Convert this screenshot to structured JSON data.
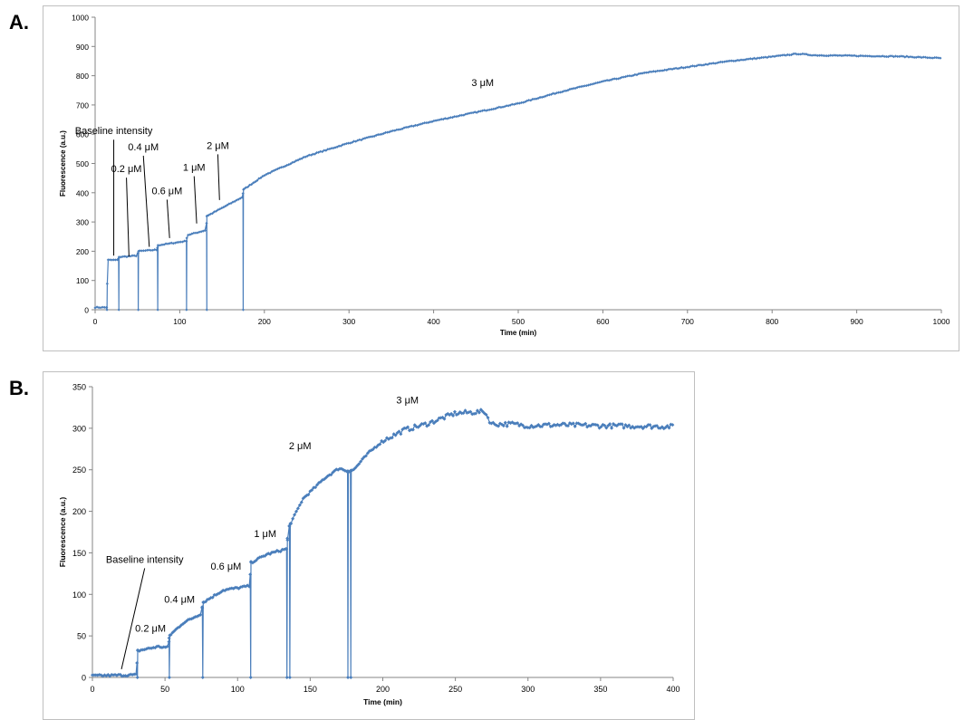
{
  "panels": {
    "a_label": "A.",
    "b_label": "B."
  },
  "colors": {
    "series": "#4a7ebb",
    "axis": "#868686",
    "frame": "#bfbfbf"
  },
  "chart_data": [
    {
      "type": "line",
      "xlabel": "Time (min)",
      "ylabel": "Fluorescence (a.u.)",
      "xlim": [
        0,
        1000
      ],
      "ylim": [
        0,
        1000
      ],
      "xticks": [
        0,
        100,
        200,
        300,
        400,
        500,
        600,
        700,
        800,
        900,
        1000
      ],
      "yticks": [
        0,
        100,
        200,
        300,
        400,
        500,
        600,
        700,
        800,
        900,
        1000
      ],
      "grid": false,
      "series": [
        {
          "x": [
            0,
            14,
            15,
            27,
            28,
            50,
            51,
            73,
            74,
            108,
            109,
            131,
            132,
            174,
            175,
            200,
            250,
            300,
            350,
            400,
            450,
            500,
            550,
            600,
            650,
            700,
            750,
            800,
            830,
            850,
            900,
            950,
            1000
          ],
          "y": [
            8,
            8,
            170,
            170,
            180,
            185,
            200,
            205,
            220,
            235,
            255,
            272,
            320,
            385,
            410,
            460,
            525,
            570,
            610,
            645,
            675,
            705,
            745,
            780,
            810,
            830,
            850,
            865,
            875,
            870,
            868,
            866,
            860
          ],
          "drops": [
            14,
            28,
            51,
            74,
            108,
            132,
            175
          ]
        }
      ],
      "annotations": [
        {
          "text": "Baseline intensity",
          "x": 22,
          "y": 600,
          "ax": 22,
          "ay": 185
        },
        {
          "text": "0.2 μM",
          "x": 37,
          "y": 470,
          "ax": 40,
          "ay": 182
        },
        {
          "text": "0.4 μM",
          "x": 57,
          "y": 545,
          "ax": 64,
          "ay": 215
        },
        {
          "text": "0.6 μM",
          "x": 85,
          "y": 395,
          "ax": 88,
          "ay": 245
        },
        {
          "text": "1 μM",
          "x": 117,
          "y": 475,
          "ax": 120,
          "ay": 295
        },
        {
          "text": "2 μM",
          "x": 145,
          "y": 550,
          "ax": 147,
          "ay": 375
        },
        {
          "text": "3 μM",
          "x": 458,
          "y": 765
        }
      ]
    },
    {
      "type": "line",
      "xlabel": "Time (min)",
      "ylabel": "Fluorescence (a.u.)",
      "xlim": [
        0,
        400
      ],
      "ylim": [
        0,
        350
      ],
      "xticks": [
        0,
        50,
        100,
        150,
        200,
        250,
        300,
        350,
        400
      ],
      "yticks": [
        0,
        50,
        100,
        150,
        200,
        250,
        300,
        350
      ],
      "grid": false,
      "series": [
        {
          "x": [
            0,
            30,
            31,
            45,
            52,
            53,
            62,
            75,
            76,
            90,
            108,
            109,
            120,
            134,
            135,
            145,
            160,
            170,
            176,
            180,
            190,
            200,
            215,
            230,
            250,
            270,
            275,
            290,
            300,
            320,
            350,
            400
          ],
          "y": [
            2,
            3,
            32,
            37,
            36,
            50,
            65,
            77,
            90,
            105,
            110,
            138,
            148,
            155,
            180,
            215,
            240,
            252,
            248,
            250,
            270,
            285,
            298,
            305,
            318,
            320,
            305,
            305,
            303,
            304,
            303,
            302
          ],
          "drops": [
            31,
            53,
            76,
            109,
            134,
            136,
            176,
            178
          ]
        }
      ],
      "annotations": [
        {
          "text": "Baseline intensity",
          "x": 36,
          "y": 138,
          "ax": 20,
          "ay": 10
        },
        {
          "text": "0.2 μM",
          "x": 40,
          "y": 55
        },
        {
          "text": "0.4 μM",
          "x": 60,
          "y": 90
        },
        {
          "text": "0.6 μM",
          "x": 92,
          "y": 130
        },
        {
          "text": "1 μM",
          "x": 119,
          "y": 169
        },
        {
          "text": "2 μM",
          "x": 143,
          "y": 275
        },
        {
          "text": "3 μM",
          "x": 217,
          "y": 330
        }
      ]
    }
  ]
}
